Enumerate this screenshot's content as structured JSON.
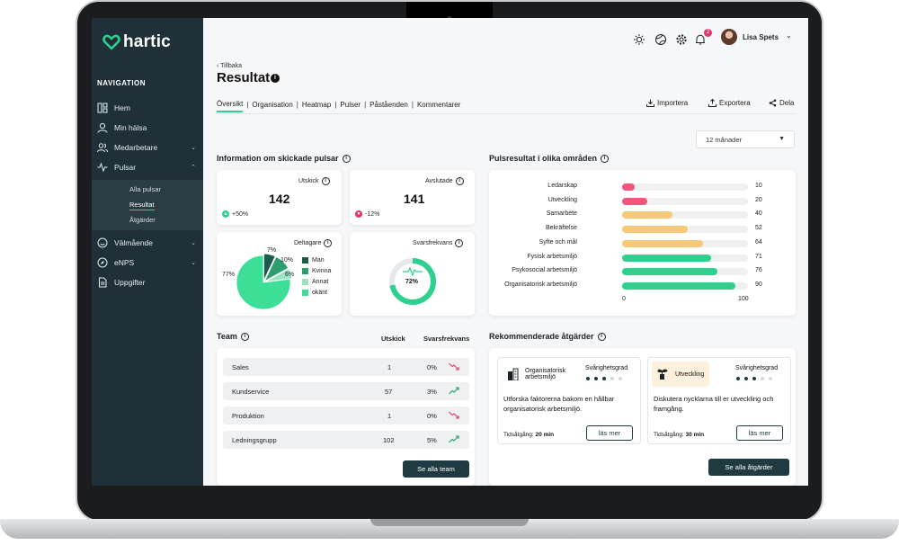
{
  "app": {
    "name": "hartic"
  },
  "sidebar": {
    "heading": "NAVIGATION",
    "items": [
      {
        "label": "Hem",
        "icon": "layout-icon"
      },
      {
        "label": "Min hälsa",
        "icon": "user-icon"
      },
      {
        "label": "Medarbetare",
        "icon": "users-icon"
      },
      {
        "label": "Pulsar",
        "icon": "pulse-icon"
      },
      {
        "label": "Välmående",
        "icon": "smile-icon"
      },
      {
        "label": "eNPS",
        "icon": "compass-icon"
      },
      {
        "label": "Uppgifter",
        "icon": "document-icon"
      }
    ],
    "subitems": [
      {
        "label": "Alla pulsar"
      },
      {
        "label": "Resultat"
      },
      {
        "label": "Åtgärder"
      }
    ]
  },
  "topbar": {
    "notification_count": "2",
    "user_name": "Lisa Spets"
  },
  "header": {
    "back": "Tillbaka",
    "title": "Resultat"
  },
  "tabs": [
    "Översikt",
    "Organisation",
    "Heatmap",
    "Pulser",
    "Påståenden",
    "Kommentarer"
  ],
  "actions": {
    "import": "Importera",
    "export": "Exportera",
    "share": "Dela"
  },
  "period": {
    "selected": "12 månader"
  },
  "sent_info": {
    "title": "Information om skickade pulsar",
    "sent": {
      "label": "Utskick",
      "value": "142",
      "delta": "+50%"
    },
    "completed": {
      "label": "Avslutade",
      "value": "141",
      "delta": "-12%"
    },
    "participants": {
      "label": "Deltagare",
      "slices": [
        {
          "name": "Man",
          "pct": "7%",
          "value": 7,
          "color": "#1f5b4c"
        },
        {
          "name": "Kvinna",
          "pct": "10%",
          "value": 10,
          "color": "#2f9e6e"
        },
        {
          "name": "Annat",
          "pct": "6%",
          "value": 6,
          "color": "#9be3c2"
        },
        {
          "name": "okänt",
          "pct": "77%",
          "value": 77,
          "color": "#3dde97"
        }
      ]
    },
    "response_rate": {
      "label": "Svarsfrekvans",
      "value": "72%",
      "fraction": 0.72
    }
  },
  "pulse_results": {
    "title": "Pulsresultat i olika områden",
    "axis_min": "0",
    "axis_max": "100",
    "rows": [
      {
        "label": "Ledarskap",
        "value": 10,
        "display": "10",
        "color": "#f0557c"
      },
      {
        "label": "Utveckling",
        "value": 20,
        "display": "20",
        "color": "#f0557c"
      },
      {
        "label": "Samarbete",
        "value": 40,
        "display": "40",
        "color": "#f6c879"
      },
      {
        "label": "Bekräftelse",
        "value": 52,
        "display": "52",
        "color": "#f6c879"
      },
      {
        "label": "Syfte och mål",
        "value": 64,
        "display": "64",
        "color": "#f6c879"
      },
      {
        "label": "Fysisk arbetsmiljö",
        "value": 71,
        "display": "71",
        "color": "#2fd08e"
      },
      {
        "label": "Psykosocial arbetsmiljö",
        "value": 76,
        "display": "76",
        "color": "#2fd08e"
      },
      {
        "label": "Organisatorisk arbetsmiljö",
        "value": 90,
        "display": "90",
        "color": "#2fd08e"
      }
    ]
  },
  "team": {
    "title": "Team",
    "col_sent": "Utskick",
    "col_rate": "Svarsfrekvans",
    "rows": [
      {
        "name": "Sales",
        "sent": "1",
        "rate": "0%",
        "trend": "down"
      },
      {
        "name": "Kundservice",
        "sent": "57",
        "rate": "3%",
        "trend": "up"
      },
      {
        "name": "Produktion",
        "sent": "1",
        "rate": "0%",
        "trend": "down"
      },
      {
        "name": "Ledningsgrupp",
        "sent": "102",
        "rate": "5%",
        "trend": "up"
      }
    ],
    "button": "Se alla team"
  },
  "recommended": {
    "title": "Rekommenderade åtgärder",
    "severity_label": "Svårighetsgrad",
    "time_label": "Tidsåtgång:",
    "cards": [
      {
        "tag": "Organisatorisk arbetsmiljö",
        "severity": 3,
        "text": "Utforska faktorerna bakom en hållbar organisatorisk arbetsmiljö.",
        "time": "20 min",
        "button": "läs mer",
        "tag_color": "#ffffff"
      },
      {
        "tag": "Utveckling",
        "severity": 3,
        "text": "Diskutera nycklarna till er utveckling och framgång.",
        "time": "30 min",
        "button": "läs mer",
        "tag_color": "#fdf0dc"
      }
    ],
    "button": "Se alla åtgärder"
  }
}
